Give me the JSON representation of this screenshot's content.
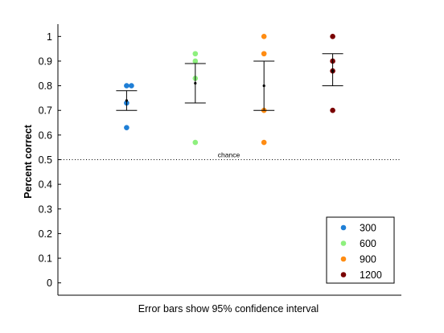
{
  "chart_data": {
    "type": "scatter",
    "title": "",
    "xlabel": "Error bars show 95% confidence interval",
    "ylabel": "Percent correct",
    "ylim": [
      -0.05,
      1.05
    ],
    "xlim": [
      0.0,
      5.0
    ],
    "yticks": [
      0,
      0.1,
      0.2,
      0.3,
      0.4,
      0.5,
      0.6,
      0.7,
      0.8,
      0.9,
      1
    ],
    "ytick_labels": [
      "0",
      "0.1",
      "0.2",
      "0.3",
      "0.4",
      "0.5",
      "0.6",
      "0.7",
      "0.8",
      "0.9",
      "1"
    ],
    "reference_line": {
      "y": 0.5,
      "label": "chance",
      "style": "dotted"
    },
    "legend": {
      "position": "bottom-right"
    },
    "series": [
      {
        "name": "300",
        "color": "#1f7fd6",
        "x": 1,
        "points": [
          0.8,
          0.8,
          0.73,
          0.63
        ],
        "mean": 0.74,
        "ci": [
          0.7,
          0.78
        ]
      },
      {
        "name": "600",
        "color": "#8ef07e",
        "x": 2,
        "points": [
          0.93,
          0.9,
          0.83,
          0.57
        ],
        "mean": 0.81,
        "ci": [
          0.73,
          0.89
        ]
      },
      {
        "name": "900",
        "color": "#ff8c12",
        "x": 3,
        "points": [
          1.0,
          0.93,
          0.7,
          0.57
        ],
        "mean": 0.8,
        "ci": [
          0.7,
          0.9
        ]
      },
      {
        "name": "1200",
        "color": "#7a0000",
        "x": 4,
        "points": [
          1.0,
          0.9,
          0.86,
          0.7
        ],
        "mean": 0.86,
        "ci": [
          0.8,
          0.93
        ]
      }
    ]
  }
}
